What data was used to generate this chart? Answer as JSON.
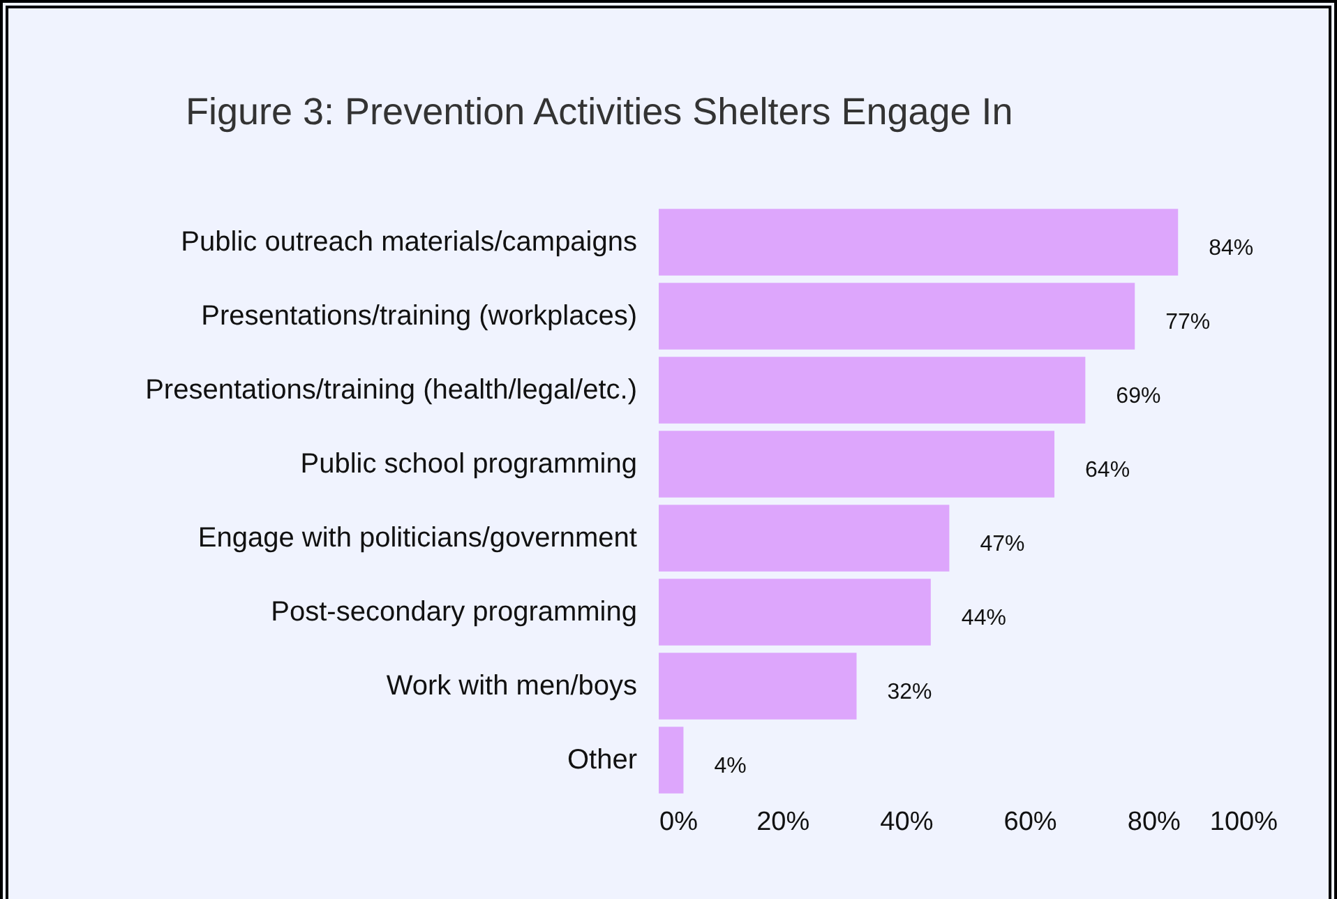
{
  "chart_data": {
    "type": "bar",
    "orientation": "horizontal",
    "title": "Figure 3: Prevention Activities Shelters Engage In",
    "categories": [
      "Public outreach materials/campaigns",
      "Presentations/training (workplaces)",
      "Presentations/training (health/legal/etc.)",
      "Public school programming",
      "Engage with politicians/government",
      "Post-secondary programming",
      "Work with men/boys",
      "Other"
    ],
    "values": [
      84,
      77,
      69,
      64,
      47,
      44,
      32,
      4
    ],
    "value_labels": [
      "84%",
      "77%",
      "69%",
      "64%",
      "47%",
      "44%",
      "32%",
      "4%"
    ],
    "color": "#dda6fc",
    "xlim": [
      0,
      100
    ],
    "xticks": [
      {
        "value": 0,
        "label": "0%"
      },
      {
        "value": 20,
        "label": "20%"
      },
      {
        "value": 40,
        "label": "40%"
      },
      {
        "value": 60,
        "label": "60%"
      },
      {
        "value": 80,
        "label": "80%"
      },
      {
        "value": 100,
        "label": "100%"
      }
    ],
    "grid": false
  }
}
